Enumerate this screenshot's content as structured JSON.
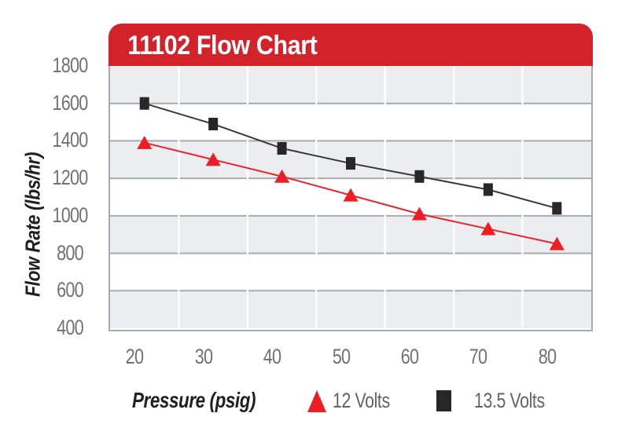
{
  "header": {
    "title": "11102 Flow Chart"
  },
  "chart_data": {
    "type": "line",
    "title": "11102 Flow Chart",
    "xlabel": "Pressure (psig)",
    "ylabel": "Flow Rate (lbs/hr)",
    "x": [
      20,
      30,
      40,
      50,
      60,
      70,
      80
    ],
    "ylim": [
      400,
      1800
    ],
    "yticks": [
      1800,
      1600,
      1400,
      1200,
      1000,
      800,
      600,
      400
    ],
    "grid": "horizontal",
    "band_fill": "alternating, gray band starts at top (1800-1600)",
    "legend_position": "bottom",
    "series": [
      {
        "name": "13.5 Volts",
        "marker": "square",
        "color": "#2A2526",
        "line_color": "#3B3738",
        "values": [
          1600,
          1490,
          1360,
          1280,
          1210,
          1140,
          1040
        ]
      },
      {
        "name": "12 Volts",
        "marker": "triangle",
        "color": "#EE1D25",
        "line_color": "#E8252C",
        "values": [
          1390,
          1300,
          1210,
          1110,
          1010,
          930,
          850
        ]
      }
    ]
  },
  "legend": {
    "items": [
      {
        "label": "12 Volts",
        "marker": "triangle",
        "color": "#EE1D25"
      },
      {
        "label": "13.5 Volts",
        "marker": "square",
        "color": "#2A2526"
      }
    ]
  },
  "colors": {
    "banner_red": "#D4222B",
    "banner_text": "#FFFFFF",
    "band_gray": "#ECEDF1",
    "band_white": "#FFFFFF",
    "gridline": "#A8AAAD",
    "plot_border": "#A8AAAD",
    "column_separator": "#FFFFFF",
    "tick_text": "#707175",
    "axis_title_text": "#231F20",
    "legend_text": "#636467"
  }
}
